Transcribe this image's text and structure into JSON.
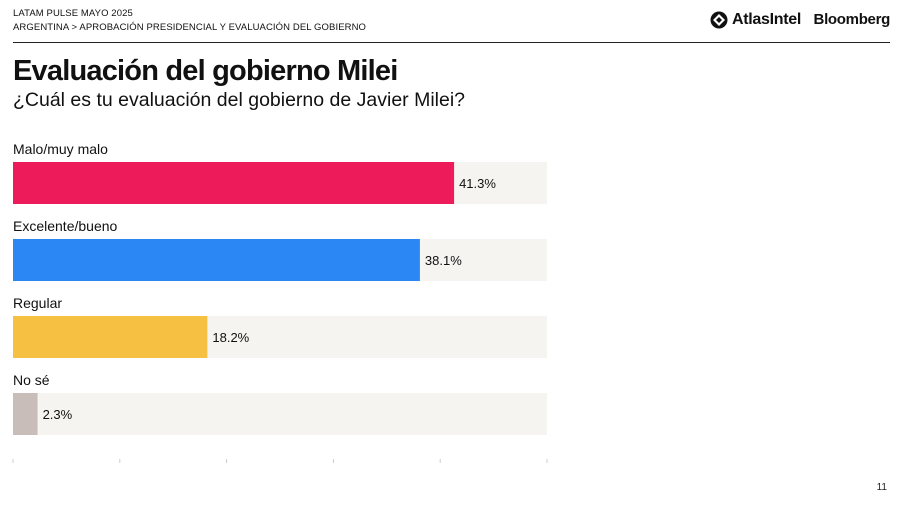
{
  "header": {
    "eyebrow_line1": "LATAM PULSE MAYO 2025",
    "eyebrow_line2": "ARGENTINA > APROBACIÓN PRESIDENCIAL Y EVALUACIÓN DEL GOBIERNO",
    "logo_atlas": "AtlasIntel",
    "logo_bloomberg": "Bloomberg"
  },
  "title": "Evaluación del gobierno Milei",
  "subtitle": "¿Cuál es tu evaluación del gobierno de Javier Milei?",
  "page_number": "11",
  "chart_data": {
    "type": "bar",
    "orientation": "horizontal",
    "categories": [
      "Malo/muy malo",
      "Excelente/bueno",
      "Regular",
      "No sé"
    ],
    "values": [
      41.3,
      38.1,
      18.2,
      2.3
    ],
    "value_labels": [
      "41.3%",
      "38.1%",
      "18.2%",
      "2.3%"
    ],
    "colors": [
      "#ED1B5A",
      "#2B87F4",
      "#F6C143",
      "#C8BDB8"
    ],
    "track_color": "#F5F4F1",
    "xlim": [
      0,
      50
    ],
    "ticks": [
      0,
      10,
      20,
      30,
      40,
      50
    ],
    "tick_labels": [
      "0%",
      "10%",
      "20%",
      "30%",
      "40%",
      "50%"
    ],
    "grid": false,
    "legend": "none"
  }
}
